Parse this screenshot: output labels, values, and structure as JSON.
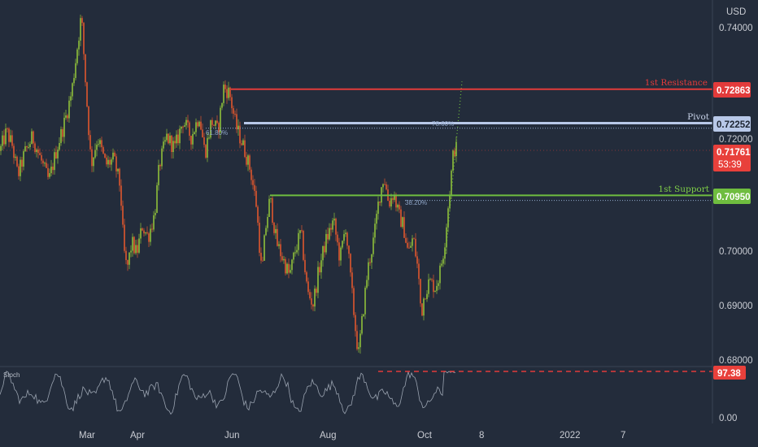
{
  "currency": "USD",
  "y_ticks": [
    "0.74000",
    "0.72000",
    "0.70000",
    "0.69000",
    "0.68000"
  ],
  "x_ticks": [
    "Mar",
    "Apr",
    "Jun",
    "Aug",
    "Oct",
    "8",
    "2022",
    "7"
  ],
  "levels": {
    "resistance": {
      "label": "1st Resistance",
      "value": "0.72863",
      "color": "#e23b3b"
    },
    "pivot": {
      "label": "Pivot",
      "value": "0.72252",
      "color": "#8fa9d6"
    },
    "support": {
      "label": "1st Support",
      "value": "0.70950",
      "color": "#6fbd3f"
    }
  },
  "last_price": {
    "value": "0.71761",
    "countdown": "53:39",
    "color": "#e8403b"
  },
  "fib_labels": [
    "61.80%",
    "78.60%",
    "38.20%"
  ],
  "stoch": {
    "label": "Stoch",
    "value": "97.38",
    "scale_top": "",
    "scale_bottom": "0.00"
  },
  "chart_data": {
    "type": "candlestick",
    "symbol_currency": "USD",
    "x_labels": [
      "Mar",
      "Apr",
      "Jun",
      "Aug",
      "Oct",
      "8",
      "2022",
      "7"
    ],
    "y_range": [
      0.6795,
      0.7425
    ],
    "price_path": [
      [
        0,
        0.7175
      ],
      [
        8,
        0.721
      ],
      [
        15,
        0.7185
      ],
      [
        22,
        0.713
      ],
      [
        30,
        0.717
      ],
      [
        40,
        0.72
      ],
      [
        50,
        0.716
      ],
      [
        60,
        0.712
      ],
      [
        70,
        0.718
      ],
      [
        80,
        0.723
      ],
      [
        88,
        0.728
      ],
      [
        94,
        0.735
      ],
      [
        100,
        0.742
      ],
      [
        106,
        0.728
      ],
      [
        112,
        0.715
      ],
      [
        120,
        0.72
      ],
      [
        130,
        0.715
      ],
      [
        140,
        0.716
      ],
      [
        148,
        0.711
      ],
      [
        152,
        0.7
      ],
      [
        156,
        0.696
      ],
      [
        162,
        0.701
      ],
      [
        168,
        0.699
      ],
      [
        175,
        0.704
      ],
      [
        182,
        0.702
      ],
      [
        190,
        0.706
      ],
      [
        196,
        0.715
      ],
      [
        205,
        0.72
      ],
      [
        215,
        0.718
      ],
      [
        225,
        0.723
      ],
      [
        235,
        0.72
      ],
      [
        245,
        0.724
      ],
      [
        252,
        0.717
      ],
      [
        260,
        0.723
      ],
      [
        268,
        0.721
      ],
      [
        275,
        0.729
      ],
      [
        282,
        0.728
      ],
      [
        290,
        0.722
      ],
      [
        300,
        0.718
      ],
      [
        308,
        0.714
      ],
      [
        315,
        0.708
      ],
      [
        322,
        0.695
      ],
      [
        326,
        0.703
      ],
      [
        332,
        0.709
      ],
      [
        340,
        0.701
      ],
      [
        348,
        0.698
      ],
      [
        356,
        0.695
      ],
      [
        362,
        0.699
      ],
      [
        370,
        0.703
      ],
      [
        378,
        0.692
      ],
      [
        385,
        0.69
      ],
      [
        392,
        0.696
      ],
      [
        400,
        0.701
      ],
      [
        410,
        0.705
      ],
      [
        418,
        0.698
      ],
      [
        425,
        0.704
      ],
      [
        432,
        0.693
      ],
      [
        438,
        0.684
      ],
      [
        441,
        0.681
      ],
      [
        446,
        0.688
      ],
      [
        452,
        0.696
      ],
      [
        460,
        0.702
      ],
      [
        466,
        0.709
      ],
      [
        472,
        0.713
      ],
      [
        478,
        0.708
      ],
      [
        484,
        0.71
      ],
      [
        490,
        0.706
      ],
      [
        496,
        0.704
      ],
      [
        502,
        0.699
      ],
      [
        508,
        0.702
      ],
      [
        514,
        0.696
      ],
      [
        518,
        0.688
      ],
      [
        522,
        0.692
      ],
      [
        528,
        0.694
      ],
      [
        535,
        0.693
      ],
      [
        540,
        0.695
      ],
      [
        546,
        0.7
      ],
      [
        552,
        0.709
      ],
      [
        558,
        0.718
      ],
      [
        562,
        0.7178
      ]
    ],
    "levels": [
      {
        "name": "1st Resistance",
        "value": 0.72863
      },
      {
        "name": "Pivot",
        "value": 0.72252
      },
      {
        "name": "1st Support",
        "value": 0.7095
      }
    ],
    "fib_levels": [
      {
        "label": "61.80%",
        "value": 0.7216
      },
      {
        "label": "78.60%",
        "value": 0.7225
      },
      {
        "label": "38.20%",
        "value": 0.7086
      }
    ],
    "last_price": 0.71761,
    "stochastic": {
      "last_value": 97.38,
      "range": [
        0,
        100
      ]
    }
  }
}
